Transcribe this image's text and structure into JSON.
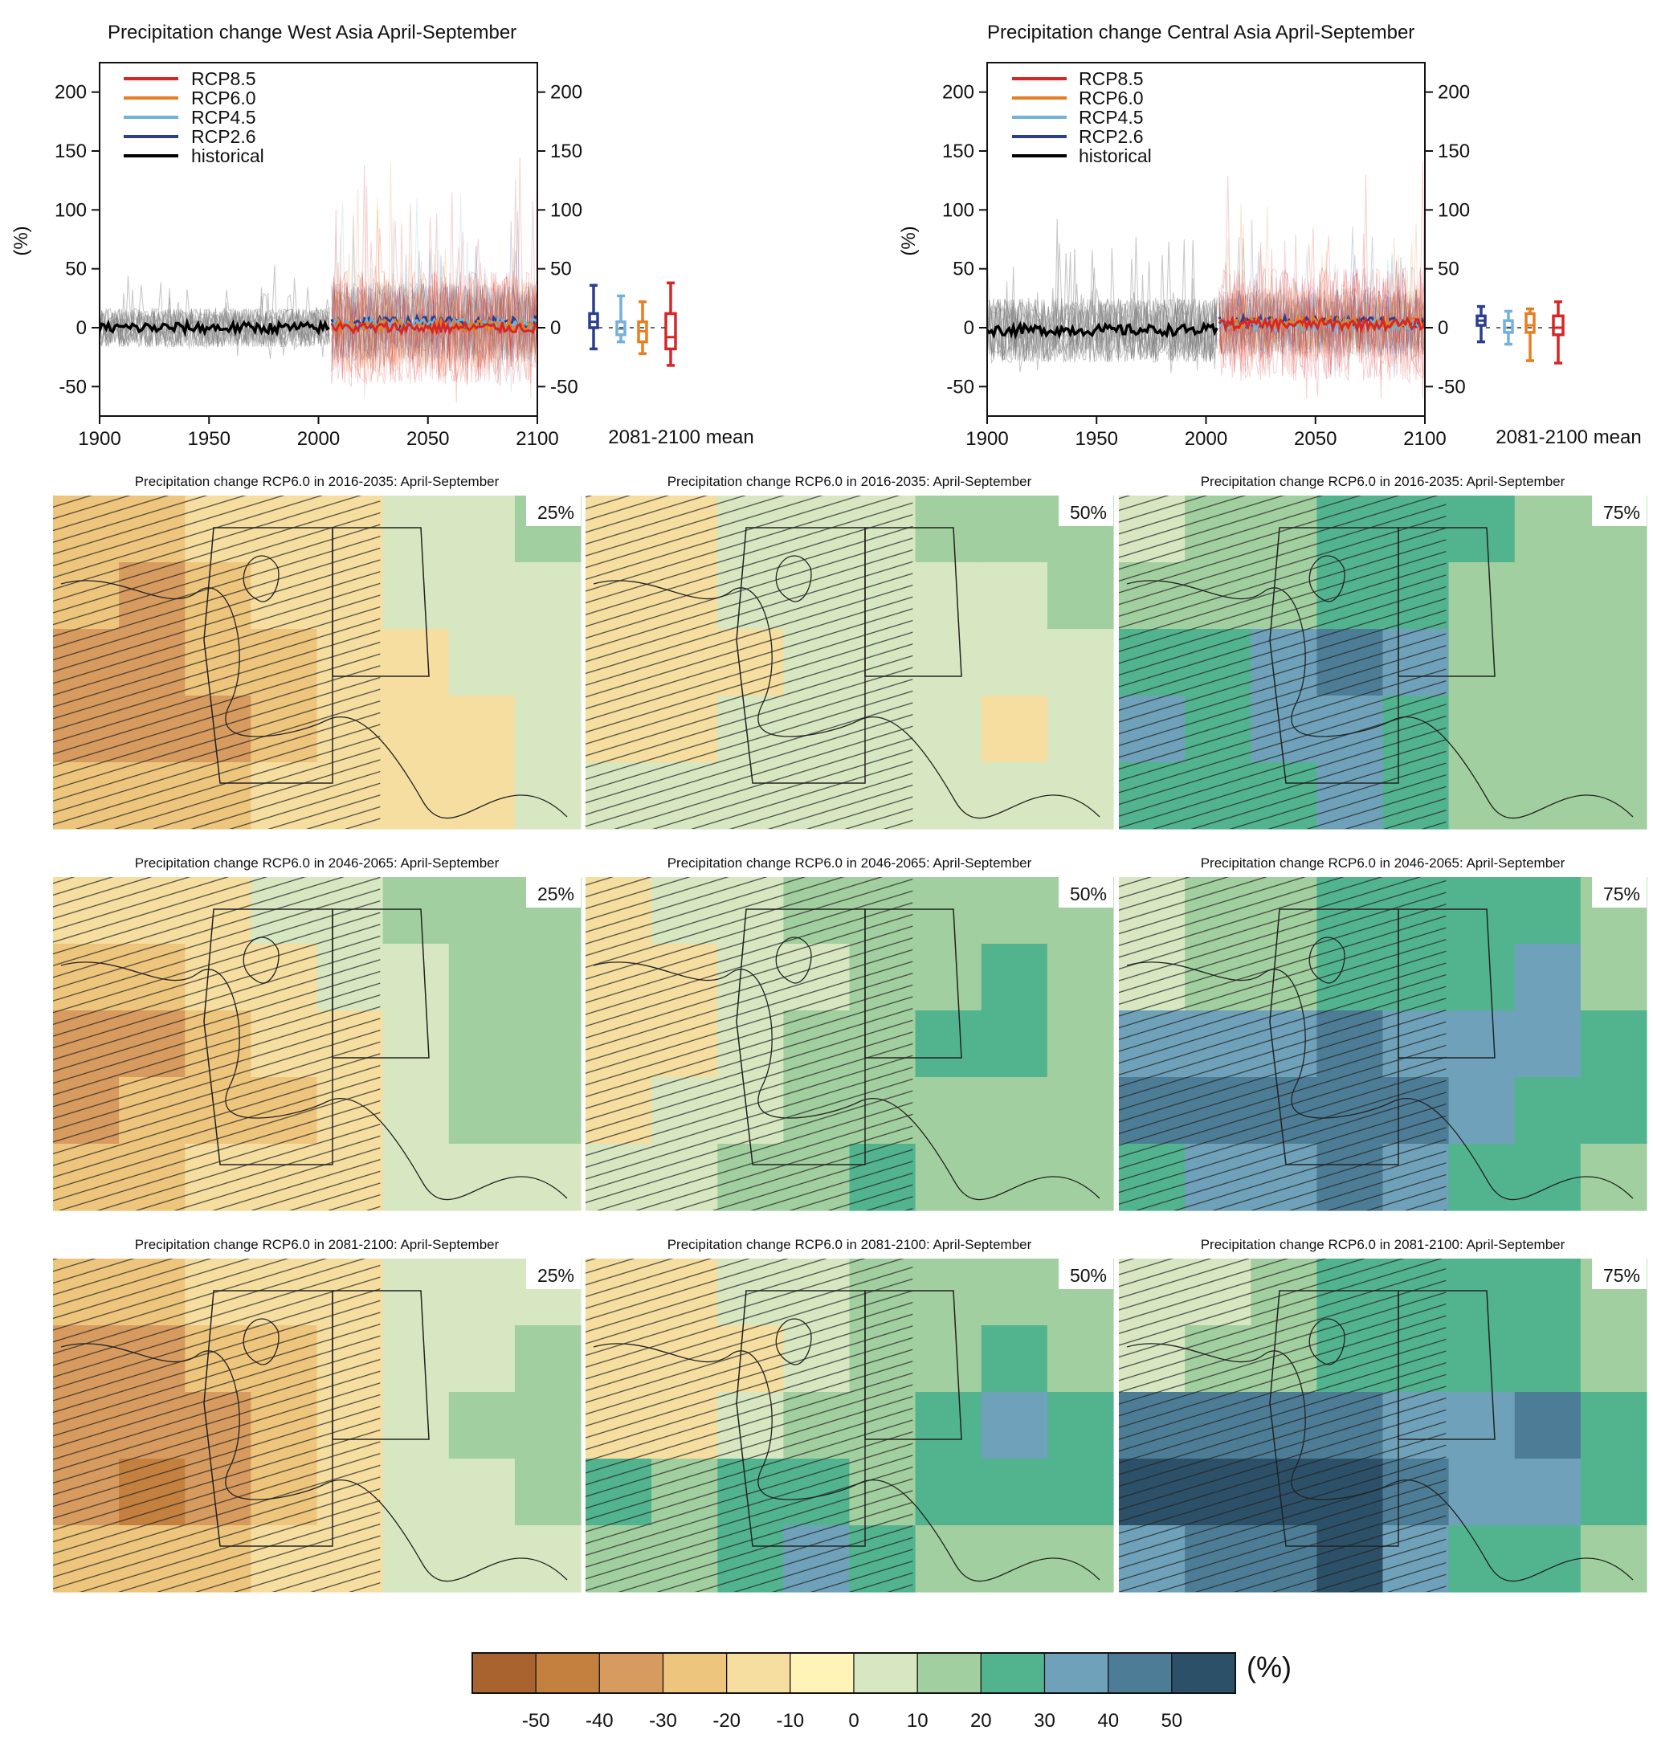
{
  "chart_data": [
    {
      "type": "line",
      "title": "Precipitation change West Asia April-September",
      "ylabel": "(%)",
      "xlim": [
        1900,
        2100
      ],
      "ylim": [
        -75,
        225
      ],
      "x_ticks": [
        1900,
        1950,
        2000,
        2050,
        2100
      ],
      "y_ticks": [
        -50,
        0,
        50,
        100,
        150,
        200
      ],
      "legend": {
        "position": "top-left",
        "entries": [
          "RCP8.5",
          "RCP6.0",
          "RCP4.5",
          "RCP2.6",
          "historical"
        ]
      },
      "series": [
        {
          "name": "historical",
          "color": "#000000",
          "x_range": [
            1900,
            2005
          ],
          "mean": 0,
          "member_spread": [
            -50,
            60
          ]
        },
        {
          "name": "RCP2.6",
          "color": "#2a3f8f",
          "x_range": [
            2006,
            2100
          ],
          "mean": 5,
          "member_spread": [
            -60,
            120
          ]
        },
        {
          "name": "RCP4.5",
          "color": "#74b0d8",
          "x_range": [
            2006,
            2100
          ],
          "mean": 3,
          "member_spread": [
            -60,
            120
          ]
        },
        {
          "name": "RCP6.0",
          "color": "#e67e22",
          "x_range": [
            2006,
            2100
          ],
          "mean": 2,
          "member_spread": [
            -60,
            150
          ]
        },
        {
          "name": "RCP8.5",
          "color": "#d62728",
          "x_range": [
            2006,
            2100
          ],
          "mean": 0,
          "member_spread": [
            -70,
            175
          ]
        }
      ],
      "mean_2081_2100": {
        "label": "2081-2100 mean",
        "boxes": [
          {
            "series": "RCP2.6",
            "color": "#2a3f8f",
            "min": -18,
            "q1": 0,
            "median": 5,
            "q3": 12,
            "max": 36
          },
          {
            "series": "RCP4.5",
            "color": "#74b0d8",
            "min": -12,
            "q1": -6,
            "median": -1,
            "q3": 5,
            "max": 27
          },
          {
            "series": "RCP6.0",
            "color": "#e67e22",
            "min": -22,
            "q1": -12,
            "median": -3,
            "q3": 5,
            "max": 22
          },
          {
            "series": "RCP8.5",
            "color": "#d62728",
            "min": -32,
            "q1": -18,
            "median": -8,
            "q3": 12,
            "max": 38
          }
        ]
      }
    },
    {
      "type": "line",
      "title": "Precipitation change Central Asia April-September",
      "ylabel": "(%)",
      "xlim": [
        1900,
        2100
      ],
      "ylim": [
        -75,
        225
      ],
      "x_ticks": [
        1900,
        1950,
        2000,
        2050,
        2100
      ],
      "y_ticks": [
        -50,
        0,
        50,
        100,
        150,
        200
      ],
      "legend": {
        "position": "top-left",
        "entries": [
          "RCP8.5",
          "RCP6.0",
          "RCP4.5",
          "RCP2.6",
          "historical"
        ]
      },
      "series": [
        {
          "name": "historical",
          "color": "#000000",
          "x_range": [
            1900,
            2005
          ],
          "mean": -2,
          "member_spread": [
            -60,
            100
          ]
        },
        {
          "name": "RCP2.6",
          "color": "#2a3f8f",
          "x_range": [
            2006,
            2100
          ],
          "mean": 5,
          "member_spread": [
            -50,
            100
          ]
        },
        {
          "name": "RCP4.5",
          "color": "#74b0d8",
          "x_range": [
            2006,
            2100
          ],
          "mean": 2,
          "member_spread": [
            -50,
            100
          ]
        },
        {
          "name": "RCP6.0",
          "color": "#e67e22",
          "x_range": [
            2006,
            2100
          ],
          "mean": 4,
          "member_spread": [
            -50,
            110
          ]
        },
        {
          "name": "RCP8.5",
          "color": "#d62728",
          "x_range": [
            2006,
            2100
          ],
          "mean": 3,
          "member_spread": [
            -60,
            175
          ]
        }
      ],
      "mean_2081_2100": {
        "label": "2081-2100 mean",
        "boxes": [
          {
            "series": "RCP2.6",
            "color": "#2a3f8f",
            "min": -12,
            "q1": 2,
            "median": 6,
            "q3": 10,
            "max": 18
          },
          {
            "series": "RCP4.5",
            "color": "#74b0d8",
            "min": -14,
            "q1": -4,
            "median": 0,
            "q3": 6,
            "max": 14
          },
          {
            "series": "RCP6.0",
            "color": "#e67e22",
            "min": -28,
            "q1": -4,
            "median": 2,
            "q3": 12,
            "max": 16
          },
          {
            "series": "RCP8.5",
            "color": "#d62728",
            "min": -30,
            "q1": -6,
            "median": 0,
            "q3": 10,
            "max": 22
          }
        ]
      }
    },
    {
      "type": "heatmap",
      "title": "RCP6.0 precipitation change percentile maps",
      "rows": [
        {
          "title": "Precipitation change RCP6.0 in 2016-2035: April-September",
          "levels": [
            [
              -20,
              -20,
              -10,
              -10,
              -10,
              0,
              0,
              10
            ],
            [
              -20,
              -30,
              -20,
              -10,
              -10,
              0,
              0,
              0
            ],
            [
              -30,
              -30,
              -20,
              -20,
              -10,
              -10,
              0,
              0
            ],
            [
              -30,
              -30,
              -30,
              -20,
              -10,
              -10,
              -10,
              0
            ],
            [
              -20,
              -20,
              -20,
              -10,
              -10,
              -10,
              -10,
              0
            ]
          ],
          "percentile": "25%"
        },
        {
          "title": "Precipitation change RCP6.0 in 2016-2035: April-September",
          "levels": [
            [
              -10,
              -10,
              0,
              0,
              0,
              10,
              10,
              10
            ],
            [
              -10,
              -10,
              0,
              0,
              0,
              0,
              0,
              10
            ],
            [
              -10,
              -10,
              -10,
              0,
              0,
              0,
              0,
              0
            ],
            [
              -10,
              -10,
              0,
              0,
              0,
              0,
              -10,
              0
            ],
            [
              0,
              0,
              0,
              0,
              0,
              0,
              0,
              0
            ]
          ],
          "percentile": "50%"
        },
        {
          "title": "Precipitation change RCP6.0 in 2016-2035: April-September",
          "levels": [
            [
              0,
              10,
              10,
              20,
              20,
              20,
              10,
              10
            ],
            [
              10,
              10,
              10,
              20,
              20,
              10,
              10,
              10
            ],
            [
              20,
              20,
              30,
              40,
              30,
              10,
              10,
              10
            ],
            [
              30,
              20,
              30,
              30,
              20,
              10,
              10,
              10
            ],
            [
              20,
              20,
              20,
              30,
              20,
              10,
              10,
              10
            ]
          ],
          "percentile": "75%"
        },
        {
          "title": "Precipitation change RCP6.0 in 2046-2065: April-September",
          "levels": [
            [
              -10,
              -10,
              -10,
              0,
              0,
              10,
              10,
              10
            ],
            [
              -20,
              -20,
              -10,
              -10,
              0,
              0,
              10,
              10
            ],
            [
              -30,
              -30,
              -20,
              -10,
              -10,
              0,
              10,
              10
            ],
            [
              -30,
              -20,
              -20,
              -20,
              -10,
              0,
              10,
              10
            ],
            [
              -20,
              -20,
              -10,
              -10,
              -10,
              0,
              0,
              0
            ]
          ],
          "percentile": "25%"
        },
        {
          "title": "Precipitation change RCP6.0 in 2046-2065: April-September",
          "levels": [
            [
              -10,
              0,
              0,
              10,
              10,
              10,
              10,
              10
            ],
            [
              -10,
              -10,
              0,
              0,
              10,
              10,
              20,
              10
            ],
            [
              -10,
              -10,
              0,
              10,
              10,
              20,
              20,
              10
            ],
            [
              -10,
              0,
              0,
              10,
              10,
              10,
              10,
              10
            ],
            [
              0,
              0,
              10,
              10,
              20,
              10,
              10,
              10
            ]
          ],
          "percentile": "50%"
        },
        {
          "title": "Precipitation change RCP6.0 in 2046-2065: April-September",
          "levels": [
            [
              0,
              10,
              10,
              20,
              20,
              20,
              20,
              10
            ],
            [
              0,
              10,
              10,
              20,
              20,
              20,
              30,
              10
            ],
            [
              30,
              30,
              30,
              40,
              30,
              30,
              30,
              20
            ],
            [
              40,
              40,
              40,
              40,
              40,
              30,
              20,
              20
            ],
            [
              20,
              30,
              30,
              40,
              30,
              20,
              20,
              10
            ]
          ],
          "percentile": "75%"
        },
        {
          "title": "Precipitation change RCP6.0 in 2081-2100: April-September",
          "levels": [
            [
              -20,
              -20,
              -10,
              -10,
              -10,
              0,
              0,
              0
            ],
            [
              -30,
              -30,
              -20,
              -20,
              -10,
              0,
              0,
              10
            ],
            [
              -30,
              -30,
              -30,
              -20,
              -10,
              0,
              10,
              10
            ],
            [
              -30,
              -40,
              -30,
              -20,
              -10,
              0,
              0,
              10
            ],
            [
              -20,
              -20,
              -20,
              -10,
              -10,
              0,
              0,
              0
            ]
          ],
          "percentile": "25%"
        },
        {
          "title": "Precipitation change RCP6.0 in 2081-2100: April-September",
          "levels": [
            [
              -10,
              -10,
              0,
              0,
              10,
              10,
              10,
              10
            ],
            [
              -10,
              -10,
              -10,
              0,
              10,
              10,
              20,
              10
            ],
            [
              -10,
              -10,
              0,
              10,
              10,
              20,
              30,
              20
            ],
            [
              20,
              10,
              20,
              20,
              10,
              20,
              20,
              20
            ],
            [
              10,
              10,
              20,
              30,
              20,
              10,
              10,
              10
            ]
          ],
          "percentile": "50%"
        },
        {
          "title": "Precipitation change RCP6.0 in 2081-2100: April-September",
          "levels": [
            [
              0,
              0,
              10,
              20,
              20,
              20,
              20,
              10
            ],
            [
              0,
              10,
              10,
              20,
              20,
              20,
              20,
              10
            ],
            [
              40,
              40,
              40,
              40,
              30,
              30,
              40,
              20
            ],
            [
              50,
              50,
              50,
              50,
              40,
              30,
              30,
              20
            ],
            [
              30,
              40,
              40,
              50,
              30,
              20,
              20,
              10
            ]
          ],
          "percentile": "75%"
        }
      ]
    }
  ],
  "timeseries": {
    "left": {
      "title": "Precipitation change West Asia April-September"
    },
    "right": {
      "title": "Precipitation change Central Asia April-September"
    },
    "ylabel": "(%)",
    "xticks": [
      "1900",
      "1950",
      "2000",
      "2050",
      "2100"
    ],
    "yticks": [
      "-50",
      "0",
      "50",
      "100",
      "150",
      "200"
    ],
    "legend": [
      "RCP8.5",
      "RCP6.0",
      "RCP4.5",
      "RCP2.6",
      "historical"
    ],
    "mean_label": "2081-2100 mean"
  },
  "colorbar": {
    "labels": [
      "-50",
      "-40",
      "-30",
      "-20",
      "-10",
      "0",
      "10",
      "20",
      "30",
      "40",
      "50"
    ],
    "unit": "(%)",
    "colors": [
      "#a8632e",
      "#c4803f",
      "#d79b5f",
      "#eec57c",
      "#f5dea0",
      "#fff3b8",
      "#d7e7c2",
      "#a2cf9f",
      "#52b48f",
      "#6fa2ba",
      "#4d7d96",
      "#2b5068"
    ]
  }
}
